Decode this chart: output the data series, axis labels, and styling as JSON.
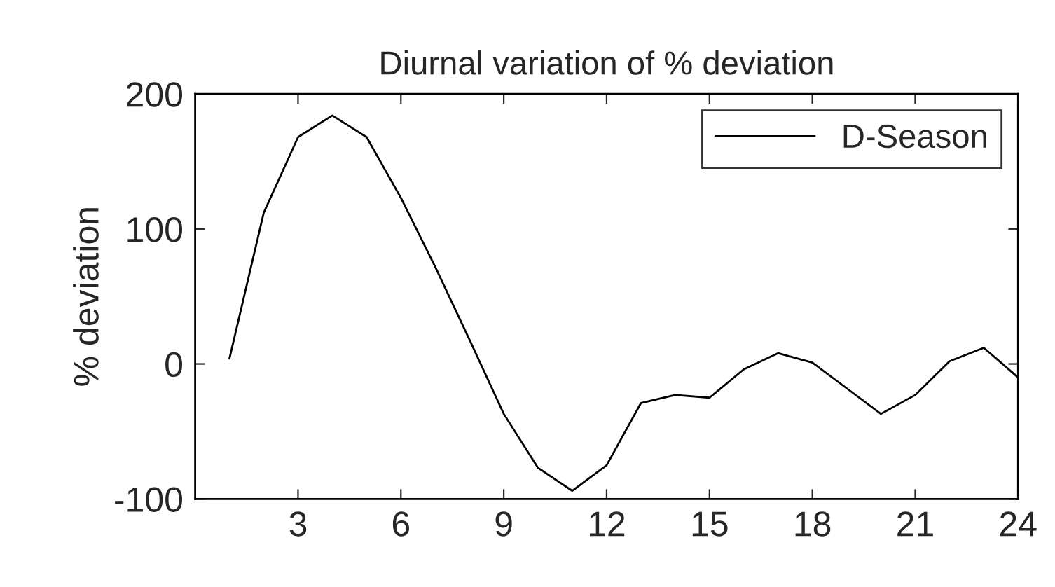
{
  "chart_data": {
    "type": "line",
    "title": "Diurnal variation of % deviation",
    "ylabel": "% deviation",
    "x": [
      1,
      2,
      3,
      4,
      5,
      6,
      7,
      8,
      9,
      10,
      11,
      12,
      13,
      14,
      15,
      16,
      17,
      18,
      19,
      20,
      21,
      22,
      23,
      24
    ],
    "series": [
      {
        "name": "D-Season",
        "color": "#000000",
        "values": [
          4,
          112,
          168,
          184,
          168,
          123,
          72,
          18,
          -37,
          -77,
          -94,
          -75,
          -29,
          -23,
          -25,
          -4,
          8,
          1,
          -18,
          -37,
          -23,
          2,
          12,
          -10
        ]
      }
    ],
    "xlim": [
      0,
      24
    ],
    "xticks": [
      3,
      6,
      9,
      12,
      15,
      18,
      21,
      24
    ],
    "ylim": [
      -100,
      200
    ],
    "yticks": [
      -100,
      0,
      100,
      200
    ],
    "grid": false,
    "legend": "top right",
    "marker": "none",
    "line_style": "solid"
  }
}
